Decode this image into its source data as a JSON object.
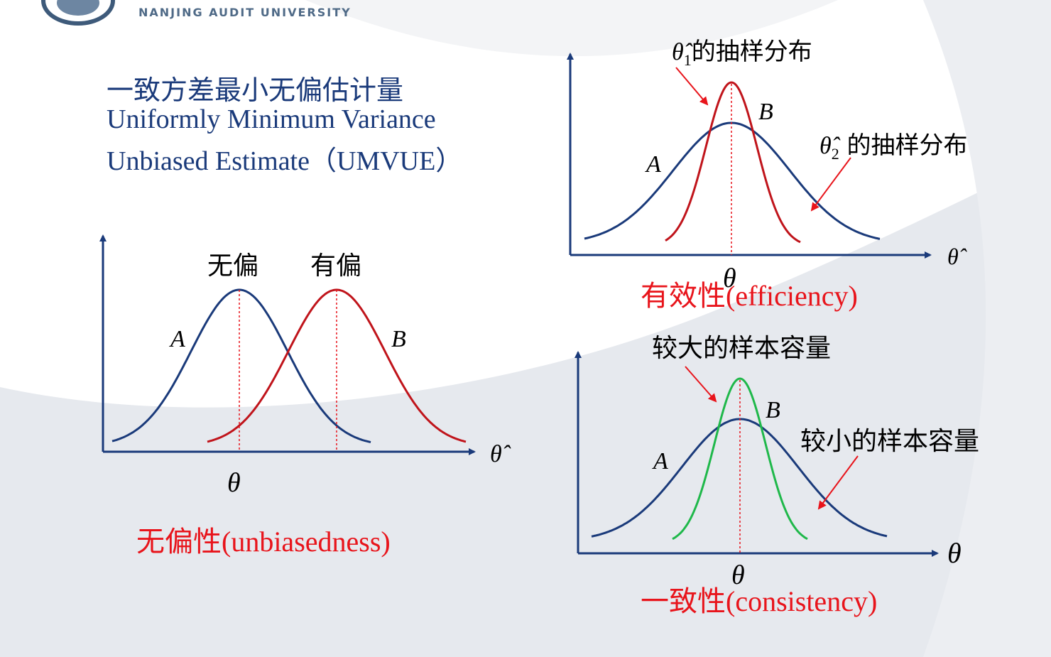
{
  "header": {
    "university_name": "NANJING  AUDIT  UNIVERSITY"
  },
  "title": {
    "chinese": "一致方差最小无偏估计量",
    "english_line1": "Uniformly Minimum Variance",
    "english_line2": "Unbiased Estimate（UMVUE）"
  },
  "panels": {
    "unbiasedness": {
      "caption_cn": "无偏性",
      "caption_en": "(unbiasedness)",
      "label_unbiased": "无偏",
      "label_biased": "有偏",
      "curve_a": "A",
      "curve_b": "B",
      "x_axis_symbol": "θ̂",
      "tick_symbol": "θ"
    },
    "efficiency": {
      "caption_cn": "有效性",
      "caption_en": "(efficiency)",
      "theta1_symbol": "θ̂",
      "theta1_sub": "1",
      "theta1_text": "的抽样分布",
      "theta2_symbol": "θ̂",
      "theta2_sub": "2",
      "theta2_text": " 的抽样分布",
      "curve_a": "A",
      "curve_b": "B",
      "x_axis_symbol": "θ̂",
      "tick_symbol": "θ"
    },
    "consistency": {
      "caption_cn": "一致性",
      "caption_en": "(consistency)",
      "large_sample_label": "较大的样本容量",
      "small_sample_label": "较小的样本容量",
      "curve_a": "A",
      "curve_b": "B",
      "x_axis_symbol": "θ",
      "tick_symbol": "θ"
    }
  },
  "colors": {
    "navy": "#1a3a7a",
    "red": "#c0141b",
    "green": "#1fb84a",
    "annotation_red": "#e8141b"
  }
}
